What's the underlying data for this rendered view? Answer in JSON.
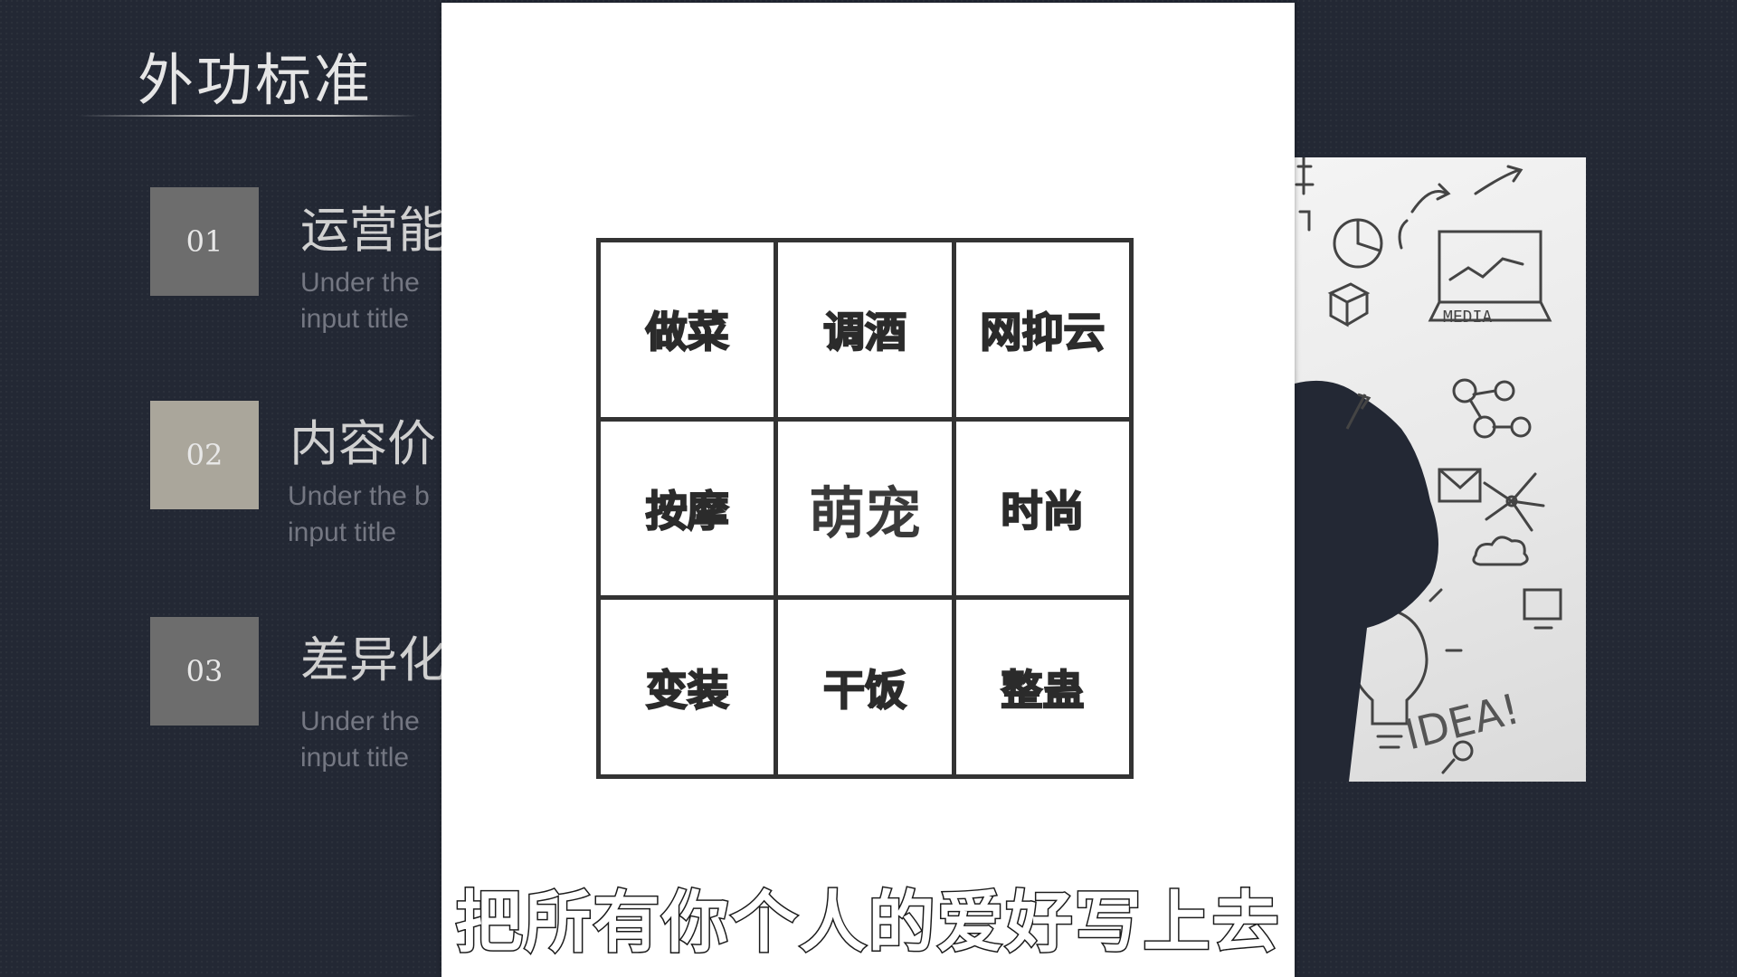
{
  "slide": {
    "title": "外功标准",
    "items": [
      {
        "number": "01",
        "title": "运营能",
        "sub_line1": "Under the",
        "sub_line2": "input title"
      },
      {
        "number": "02",
        "title": "内容价",
        "sub_line1": "Under the b",
        "sub_line2": "input title"
      },
      {
        "number": "03",
        "title": "差异化",
        "sub_line1": "Under the",
        "sub_line2": "input title"
      }
    ]
  },
  "grid": {
    "cells": [
      "做菜",
      "调酒",
      "网抑云",
      "按摩",
      "萌宠",
      "时尚",
      "变装",
      "干饭",
      "整蛊"
    ]
  },
  "illustration": {
    "media_label": "MEDIA",
    "idea_label": "IDEA!"
  },
  "caption": "把所有你个人的爱好写上去"
}
